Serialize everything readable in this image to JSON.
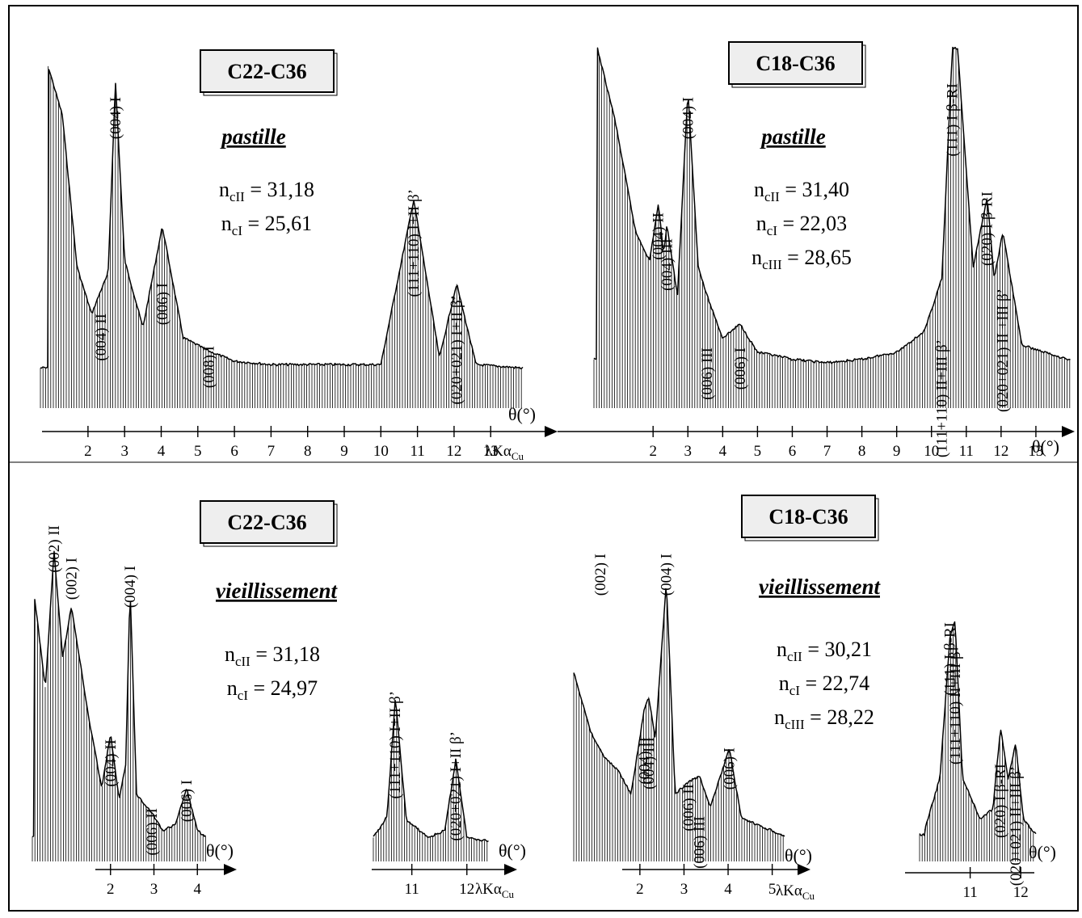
{
  "chart_data": [
    {
      "type": "line",
      "title": "C22-C36",
      "subtitle": "pastille",
      "params": [
        [
          "n",
          "cII",
          " = 31,18"
        ],
        [
          "n",
          "cI",
          " = 25,61"
        ]
      ],
      "x_ticks": [
        "2",
        "3",
        "4",
        "5",
        "6",
        "7",
        "8",
        "9",
        "10",
        "11",
        "12",
        "13"
      ],
      "x_unit_main": "θ(°)",
      "x_unit_extra": "λKα",
      "x_unit_sub": "Cu",
      "x_range": [
        0.7,
        13.9
      ],
      "peaks": [
        {
          "x": 2.35,
          "label": "(004) II"
        },
        {
          "x": 2.75,
          "label": "(004) I"
        },
        {
          "x": 4.03,
          "label": "(006) I"
        },
        {
          "x": 5.3,
          "label": "(008) I"
        },
        {
          "x": 10.9,
          "label": "(111+110) I+II β’"
        },
        {
          "x": 12.07,
          "label": "(020+021) I+II β’"
        }
      ],
      "series": [
        {
          "x": [
            0.9,
            1.3,
            1.7,
            2.1,
            2.35,
            2.55,
            2.75,
            3.0,
            3.5,
            4.03,
            4.6,
            5.3,
            6,
            7,
            8,
            9,
            10,
            10.9,
            11.6,
            12.07,
            12.6,
            13.8
          ],
          "y": [
            100,
            85,
            40,
            26,
            33,
            38,
            95,
            42,
            22,
            52,
            19,
            15,
            12,
            11,
            11,
            11,
            11,
            60,
            13,
            35,
            11,
            10
          ]
        }
      ]
    },
    {
      "type": "line",
      "title": "C18-C36",
      "subtitle": "pastille",
      "params": [
        [
          "n",
          "cII",
          " = 31,40"
        ],
        [
          "n",
          "cI",
          " = 22,03"
        ],
        [
          "n",
          "cIII",
          " = 28,65"
        ]
      ],
      "x_ticks": [
        "2",
        "3",
        "4",
        "5",
        "6",
        "7",
        "8",
        "9",
        "10",
        "11",
        "12",
        "13"
      ],
      "x_unit_main": "θ(°)",
      "x_range": [
        0.3,
        14.0
      ],
      "peaks": [
        {
          "x": 2.15,
          "label": "(004) II"
        },
        {
          "x": 2.4,
          "label": "(004) III"
        },
        {
          "x": 3.0,
          "label": "(004) I"
        },
        {
          "x": 3.55,
          "label": "(006) III"
        },
        {
          "x": 4.5,
          "label": "(006) I"
        },
        {
          "x": 10.3,
          "label": "(111+110) II+III β’"
        },
        {
          "x": 10.6,
          "label": "(111) I β-RI"
        },
        {
          "x": 11.6,
          "label": "(020) I β-RI"
        },
        {
          "x": 12.05,
          "label": "(020+021) II +III β’"
        }
      ],
      "series": [
        {
          "x": [
            0.4,
            0.9,
            1.5,
            1.9,
            2.15,
            2.3,
            2.4,
            2.7,
            3.0,
            3.3,
            3.55,
            4.0,
            4.5,
            5,
            6,
            7,
            8,
            9,
            9.8,
            10.3,
            10.6,
            10.75,
            11.2,
            11.6,
            11.8,
            12.05,
            12.6,
            13.9
          ],
          "y": [
            100,
            80,
            48,
            40,
            56,
            42,
            50,
            30,
            88,
            38,
            30,
            18,
            22,
            14,
            12,
            11,
            12,
            14,
            20,
            35,
            100,
            100,
            38,
            58,
            35,
            48,
            16,
            12
          ]
        }
      ]
    },
    {
      "type": "line",
      "title": "C22-C36",
      "subtitle": "vieillissement",
      "params": [
        [
          "n",
          "cII",
          " = 31,18"
        ],
        [
          "n",
          "cI",
          " = 24,97"
        ]
      ],
      "x_ticks": [
        "2",
        "3",
        "4"
      ],
      "x_unit_main": "θ(°)",
      "x_range": [
        0.2,
        4.2
      ],
      "peaks": [
        {
          "x": 0.7,
          "label": "(002) II"
        },
        {
          "x": 1.1,
          "label": "(002) I"
        },
        {
          "x": 2.0,
          "label": "(004) II"
        },
        {
          "x": 2.45,
          "label": "(004) I"
        },
        {
          "x": 2.95,
          "label": "(006) II"
        },
        {
          "x": 3.75,
          "label": "(006) I"
        }
      ],
      "series": [
        {
          "x": [
            0.25,
            0.5,
            0.7,
            0.9,
            1.1,
            1.5,
            1.8,
            2.0,
            2.2,
            2.35,
            2.45,
            2.6,
            2.95,
            3.2,
            3.5,
            3.75,
            4.0,
            4.2
          ],
          "y": [
            85,
            55,
            100,
            65,
            82,
            45,
            22,
            40,
            18,
            30,
            88,
            20,
            14,
            8,
            10,
            22,
            8,
            6
          ]
        }
      ]
    },
    {
      "type": "line",
      "title": "",
      "subtitle": "",
      "params": [],
      "x_ticks": [
        "11",
        "12"
      ],
      "x_unit_main": "θ(°)",
      "x_unit_extra": "λKα",
      "x_unit_sub": "Cu",
      "x_range": [
        10.3,
        12.4
      ],
      "peaks": [
        {
          "x": 10.7,
          "label": "(111+110) I+II β’"
        },
        {
          "x": 11.8,
          "label": "(020+021) I+II β’"
        }
      ],
      "series": [
        {
          "x": [
            10.3,
            10.55,
            10.7,
            10.9,
            11.3,
            11.6,
            11.8,
            12.0,
            12.4
          ],
          "y": [
            10,
            22,
            90,
            20,
            10,
            14,
            55,
            10,
            8
          ]
        }
      ]
    },
    {
      "type": "line",
      "title": "C18-C36",
      "subtitle": "vieillissement",
      "params": [
        [
          "n",
          "cII",
          " = 30,21"
        ],
        [
          "n",
          "cI",
          " = 22,74"
        ],
        [
          "n",
          "cIII",
          " = 28,22"
        ]
      ],
      "x_ticks": [
        "2",
        "3",
        "4",
        "5"
      ],
      "x_unit_main": "θ(°)",
      "x_unit_extra": "λKα",
      "x_unit_sub": "Cu",
      "x_range": [
        0.5,
        5.3
      ],
      "peaks": [
        {
          "x": 1.1,
          "label": "(002) I"
        },
        {
          "x": 2.1,
          "label": "(004) II"
        },
        {
          "x": 2.2,
          "label": "(004) III"
        },
        {
          "x": 2.6,
          "label": "(004) I"
        },
        {
          "x": 3.1,
          "label": "(006) II"
        },
        {
          "x": 3.35,
          "label": "(006) III"
        },
        {
          "x": 4.03,
          "label": "(006) I"
        }
      ],
      "series": [
        {
          "x": [
            0.5,
            0.9,
            1.2,
            1.5,
            1.8,
            2.1,
            2.2,
            2.35,
            2.6,
            2.8,
            3.1,
            3.35,
            3.6,
            4.03,
            4.3,
            5.0,
            5.3
          ],
          "y": [
            60,
            40,
            32,
            28,
            20,
            48,
            52,
            38,
            90,
            20,
            24,
            26,
            16,
            35,
            12,
            8,
            6
          ]
        }
      ]
    },
    {
      "type": "line",
      "title": "",
      "subtitle": "",
      "params": [],
      "x_ticks": [
        "11",
        "12"
      ],
      "x_unit_main": "θ(°)",
      "x_range": [
        10.0,
        12.3
      ],
      "peaks": [
        {
          "x": 10.6,
          "label": "(111) I β-RI"
        },
        {
          "x": 10.7,
          "label": "(111+110) II+III β’"
        },
        {
          "x": 11.6,
          "label": "(020) I β-RI"
        },
        {
          "x": 11.9,
          "label": "(020+021) II+III β’"
        }
      ],
      "series": [
        {
          "x": [
            10.1,
            10.4,
            10.6,
            10.7,
            10.85,
            11.2,
            11.45,
            11.6,
            11.75,
            11.9,
            12.05,
            12.3
          ],
          "y": [
            10,
            30,
            85,
            92,
            30,
            14,
            18,
            50,
            30,
            44,
            14,
            8
          ]
        }
      ]
    }
  ]
}
